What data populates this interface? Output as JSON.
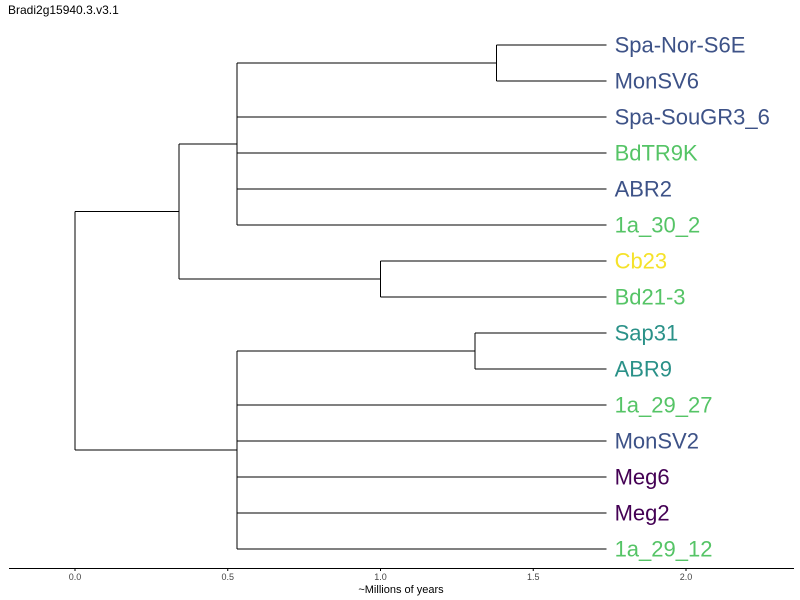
{
  "title": "Bradi2g15940.3.v3.1",
  "colors": {
    "dark_blue": "#3d5287",
    "green": "#55c466",
    "yellow": "#f5e22a",
    "teal": "#2a9188",
    "purple": "#440154"
  },
  "leaves": [
    {
      "label": "Spa-Nor-S6E",
      "color": "dark_blue"
    },
    {
      "label": "MonSV6",
      "color": "dark_blue"
    },
    {
      "label": "Spa-SouGR3_6",
      "color": "dark_blue"
    },
    {
      "label": "BdTR9K",
      "color": "green"
    },
    {
      "label": "ABR2",
      "color": "dark_blue"
    },
    {
      "label": "1a_30_2",
      "color": "green"
    },
    {
      "label": "Cb23",
      "color": "yellow"
    },
    {
      "label": "Bd21-3",
      "color": "green"
    },
    {
      "label": "Sap31",
      "color": "teal"
    },
    {
      "label": "ABR9",
      "color": "teal"
    },
    {
      "label": "1a_29_27",
      "color": "green"
    },
    {
      "label": "MonSV2",
      "color": "dark_blue"
    },
    {
      "label": "Meg6",
      "color": "purple"
    },
    {
      "label": "Meg2",
      "color": "purple"
    },
    {
      "label": "1a_29_12",
      "color": "green"
    }
  ],
  "tree": {
    "age": 0,
    "children": [
      {
        "age": 0.34,
        "children": [
          {
            "age": 0.53,
            "children": [
              {
                "age": 1.38,
                "children": [
                  {
                    "leaf": 0
                  },
                  {
                    "leaf": 1
                  }
                ]
              },
              {
                "leaf": 2
              },
              {
                "leaf": 3
              },
              {
                "leaf": 4
              },
              {
                "leaf": 5
              }
            ]
          },
          {
            "age": 1.0,
            "children": [
              {
                "leaf": 6
              },
              {
                "leaf": 7
              }
            ]
          }
        ]
      },
      {
        "age": 0.53,
        "children": [
          {
            "age": 1.31,
            "children": [
              {
                "leaf": 8
              },
              {
                "leaf": 9
              }
            ]
          },
          {
            "leaf": 10
          },
          {
            "leaf": 11
          },
          {
            "leaf": 12
          },
          {
            "leaf": 13
          },
          {
            "leaf": 14
          }
        ]
      }
    ]
  },
  "leaf_age": 1.74,
  "axis": {
    "label": "~Millions of years",
    "ticks": [
      "0.0",
      "0.5",
      "1.0",
      "1.5",
      "2.0"
    ],
    "tick_values": [
      0,
      0.5,
      1.0,
      1.5,
      2.0
    ]
  }
}
